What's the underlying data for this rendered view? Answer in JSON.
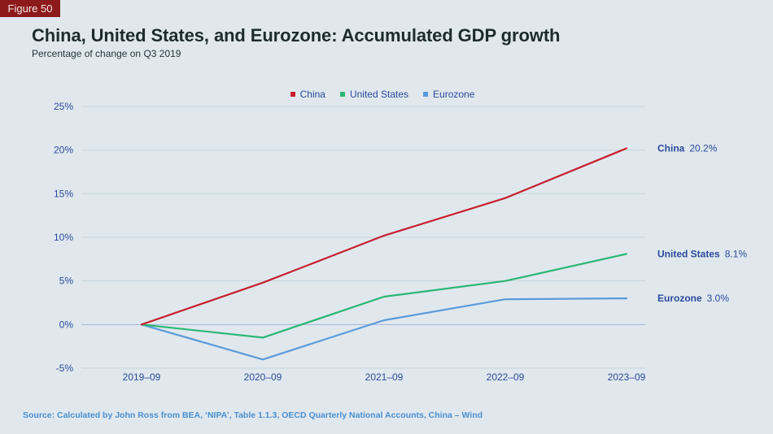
{
  "figure_label": "Figure 50",
  "source": "Source: Calculated by John Ross from BEA, ‘NIPA’, Table 1.1.3, OECD Quarterly National Accounts, China – Wind",
  "chart_data": {
    "type": "line",
    "title": "China, United States, and Eurozone: Accumulated GDP growth",
    "subtitle": "Percentage of change on Q3 2019",
    "xlabel": "",
    "ylabel": "",
    "x": [
      "2019–09",
      "2020–09",
      "2021–09",
      "2022–09",
      "2023–09"
    ],
    "ylim": [
      -5,
      25
    ],
    "yticks": [
      25,
      20,
      15,
      10,
      5,
      0,
      -5
    ],
    "ytick_labels": [
      "25%",
      "20%",
      "15%",
      "10%",
      "5%",
      "0%",
      "-5%"
    ],
    "grid": true,
    "legend_position": "top-center",
    "series": [
      {
        "name": "China",
        "color": "#c8202e",
        "values": [
          0,
          4.8,
          10.2,
          14.5,
          20.2
        ],
        "end_label": "20.2%"
      },
      {
        "name": "United States",
        "color": "#2bb673",
        "values": [
          0,
          -1.5,
          3.2,
          5.0,
          8.1
        ],
        "end_label": "8.1%"
      },
      {
        "name": "Eurozone",
        "color": "#5b9bd8",
        "values": [
          0,
          -4.0,
          0.5,
          2.9,
          3.0
        ],
        "end_label": "3.0%"
      }
    ]
  }
}
